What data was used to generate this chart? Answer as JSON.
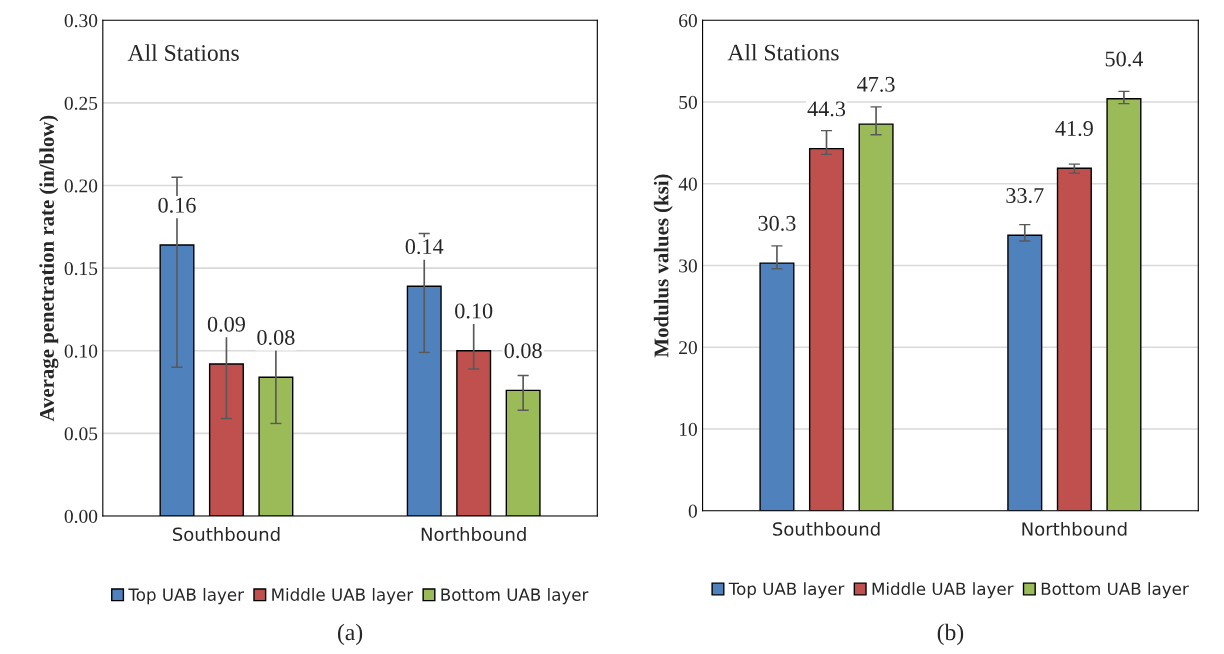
{
  "chart_data": [
    {
      "type": "bar",
      "ylabel": "Average penetration rate (in/blow)",
      "categories": [
        "Southbound",
        "Northbound"
      ],
      "series": [
        {
          "name": "Top UAB layer",
          "color": "#4f81bd",
          "values": [
            0.164,
            0.139
          ],
          "errors": [
            [
              0.09,
              0.205
            ],
            [
              0.099,
              0.171
            ]
          ],
          "value_labels": [
            "0.16",
            "0.14"
          ]
        },
        {
          "name": "Middle UAB layer",
          "color": "#c0504d",
          "values": [
            0.092,
            0.1
          ],
          "errors": [
            [
              0.059,
              0.109
            ],
            [
              0.089,
              0.121
            ]
          ],
          "value_labels": [
            "0.09",
            "0.10"
          ]
        },
        {
          "name": "Bottom UAB layer",
          "color": "#9bbb59",
          "values": [
            0.084,
            0.076
          ],
          "errors": [
            [
              0.056,
              0.103
            ],
            [
              0.064,
              0.085
            ]
          ],
          "value_labels": [
            "0.08",
            "0.08"
          ]
        }
      ],
      "ylim": [
        0,
        0.3
      ],
      "yticks": [
        {
          "value": 0,
          "label": "0.00"
        },
        {
          "value": 0.05,
          "label": "0.05"
        },
        {
          "value": 0.1,
          "label": "0.10"
        },
        {
          "value": 0.15,
          "label": "0.15"
        },
        {
          "value": 0.2,
          "label": "0.20"
        },
        {
          "value": 0.25,
          "label": "0.25"
        },
        {
          "value": 0.3,
          "label": "0.30"
        }
      ],
      "grid": "y",
      "legend": "bottom",
      "annotations": [
        "All Stations",
        "(a)"
      ]
    },
    {
      "type": "bar",
      "ylabel": "Modulus values (ksi)",
      "categories": [
        "Southbound",
        "Northbound"
      ],
      "series": [
        {
          "name": "Top UAB layer",
          "color": "#4f81bd",
          "values": [
            30.3,
            33.7
          ],
          "errors": [
            [
              29.6,
              32.4
            ],
            [
              33.0,
              35.0
            ]
          ]
        },
        {
          "name": "Middle UAB layer",
          "color": "#c0504d",
          "values": [
            44.3,
            41.9
          ],
          "errors": [
            [
              43.6,
              46.5
            ],
            [
              41.3,
              42.4
            ]
          ]
        },
        {
          "name": "Bottom UAB layer",
          "color": "#9bbb59",
          "values": [
            47.3,
            50.4
          ],
          "errors": [
            [
              46.0,
              49.4
            ],
            [
              49.8,
              51.3
            ]
          ]
        }
      ],
      "ylim": [
        0,
        60
      ],
      "yticks": [
        0,
        10,
        20,
        30,
        40,
        50,
        60
      ],
      "data_labels": true,
      "grid": "y",
      "legend": "bottom",
      "annotations": [
        "All Stations",
        "(b)"
      ]
    }
  ]
}
